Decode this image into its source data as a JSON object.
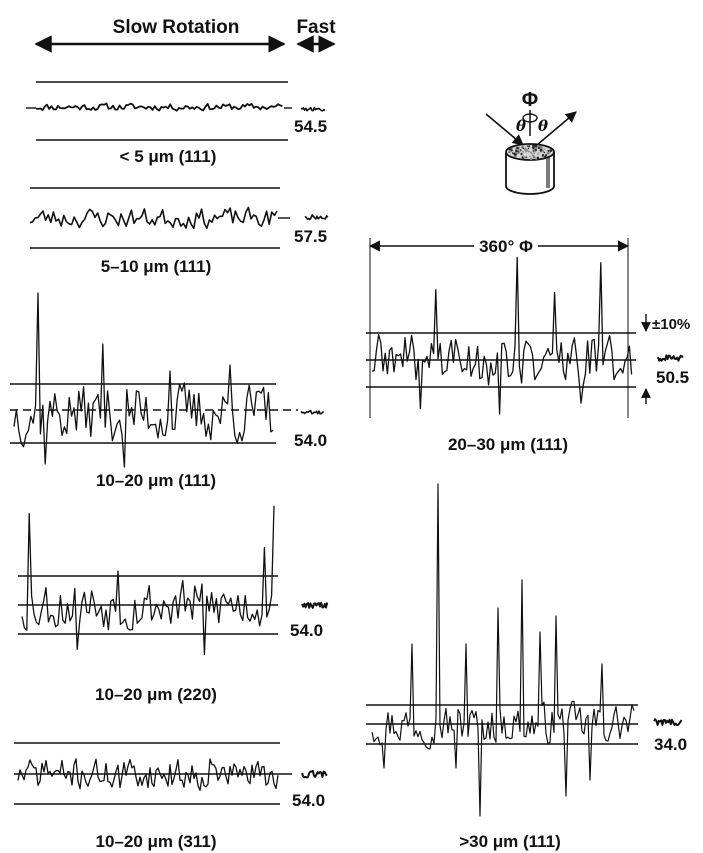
{
  "header": {
    "slow": "Slow Rotation",
    "fast": "Fast"
  },
  "inset": {
    "phi": "Φ",
    "theta_left": "θ",
    "theta_right": "θ",
    "range": "360° Φ",
    "tolerance": "±10%"
  },
  "panels": [
    {
      "caption": "< 5 μm (111)",
      "value": "54.5",
      "amplitude": 0.05
    },
    {
      "caption": "5–10 μm (111)",
      "value": "57.5",
      "amplitude": 0.25
    },
    {
      "caption": "10–20 μm (111)",
      "value": "54.0",
      "amplitude": 1.0
    },
    {
      "caption": "10–20 μm (220)",
      "value": "54.0",
      "amplitude": 0.9
    },
    {
      "caption": "10–20 μm (311)",
      "value": "54.0",
      "amplitude": 0.5
    },
    {
      "caption": "20–30 μm (111)",
      "value": "50.5",
      "amplitude": 1.0
    },
    {
      "caption": ">30 μm (111)",
      "value": "34.0",
      "amplitude": 1.0
    }
  ]
}
